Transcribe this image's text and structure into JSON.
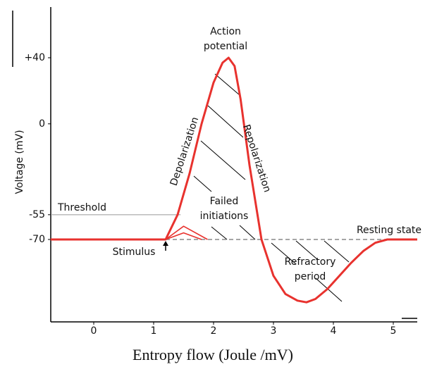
{
  "chart_data": {
    "type": "line",
    "y_label": "Voltage (mV)",
    "x_label": "Entropy flow (Joule /mV)",
    "xlim": [
      -0.72,
      5.4
    ],
    "ylim": [
      -120,
      70
    ],
    "xticks": [
      0,
      1,
      2,
      3,
      4,
      5
    ],
    "yticks": [
      {
        "value": 40,
        "label": "+40"
      },
      0,
      -55,
      -70
    ],
    "color": "#e8322e",
    "series": [
      {
        "x": [
          -0.72,
          1.2,
          1.4,
          1.6,
          1.8,
          2.0,
          2.15,
          2.25,
          2.35,
          2.45,
          2.6,
          2.8,
          3.0,
          3.2,
          3.4,
          3.55,
          3.7,
          3.9,
          4.1,
          4.3,
          4.5,
          4.7,
          4.9,
          5.4
        ],
        "values": [
          -70,
          -70,
          -55,
          -30,
          0,
          25,
          37,
          40,
          35,
          15,
          -25,
          -70,
          -92,
          -103,
          -107,
          -108,
          -106,
          -100,
          -92,
          -84,
          -77,
          -72,
          -70,
          -70
        ]
      },
      {
        "x": [
          1.2,
          1.5,
          1.9
        ],
        "values": [
          -70,
          -62,
          -70
        ]
      },
      {
        "x": [
          1.2,
          1.5,
          1.8
        ],
        "values": [
          -70,
          -66,
          -70
        ]
      }
    ],
    "reference_lines": [
      {
        "label": "Threshold",
        "value": -55
      },
      {
        "label": "Resting state",
        "value": -70
      }
    ],
    "annotations": [
      "Action",
      "potential",
      "Depolarization",
      "Repolarization",
      "Failed",
      "initiations",
      "Refractory",
      "period",
      "Stimulus"
    ]
  }
}
